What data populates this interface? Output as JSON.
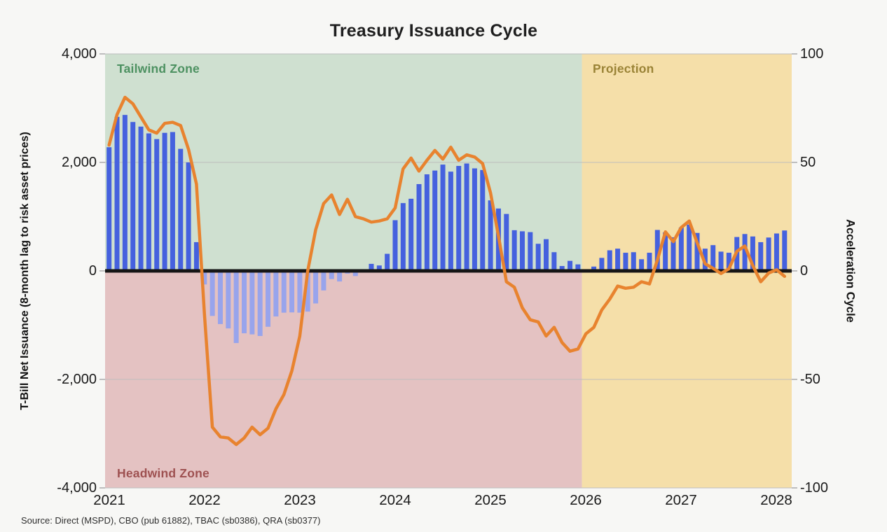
{
  "title": "Treasury Issuance Cycle",
  "source_note": "Source: Direct (MSPD), CBO (pub 61882), TBAC (sb0386), QRA (sb0377)",
  "left_axis": {
    "label": "T-Bill Net Issuance (8-month lag to risk asset prices)",
    "ticks": [
      "4,000",
      "2,000",
      "0",
      "-2,000",
      "-4,000"
    ],
    "min": -4000,
    "max": 4000
  },
  "right_axis": {
    "label": "Acceleration Cycle",
    "ticks": [
      "100",
      "50",
      "0",
      "-50",
      "-100"
    ],
    "min": -100,
    "max": 100
  },
  "x_axis": {
    "ticks": [
      "2021",
      "2022",
      "2023",
      "2024",
      "2025",
      "2026",
      "2027",
      "2028"
    ]
  },
  "zones": {
    "tailwind": {
      "label": "Tailwind Zone"
    },
    "headwind": {
      "label": "Headwind Zone"
    },
    "projection": {
      "label": "Projection"
    }
  },
  "colors": {
    "background": "#f7f7f5",
    "bar_positive": "#4561de",
    "bar_negative": "#98a4ec",
    "line": "#e8832f",
    "zero_line": "#161616",
    "grid": "#bdbdbd",
    "tailwind_fill": "#cfe0d0",
    "headwind_fill": "#e4c2c2",
    "projection_fill": "#f5dfa9",
    "tailwind_text": "#4d9161",
    "headwind_text": "#9e5151",
    "projection_text": "#9a8336"
  },
  "chart_data": {
    "type": "bar",
    "subtype": "monthly bars with overlaid line (dual axis)",
    "title": "Treasury Issuance Cycle",
    "start_month": "2021-01",
    "end_month": "2028-02",
    "left_axis_max": 4000,
    "right_axis_max": 100,
    "grid_values_left": [
      4000,
      2000,
      0,
      -2000,
      -4000
    ],
    "projection_start_index": 60,
    "projection_start_label": "2026",
    "bar_series": {
      "name": "T-Bill Net Issuance",
      "axis": "left",
      "values": [
        2280,
        2840,
        2875,
        2745,
        2660,
        2535,
        2430,
        2545,
        2560,
        2250,
        2000,
        530,
        -250,
        -830,
        -980,
        -1060,
        -1330,
        -1150,
        -1170,
        -1200,
        -1030,
        -840,
        -770,
        -765,
        -770,
        -750,
        -600,
        -360,
        -150,
        -195,
        -50,
        -95,
        0,
        130,
        100,
        315,
        935,
        1250,
        1330,
        1600,
        1780,
        1850,
        1960,
        1830,
        1935,
        1980,
        1890,
        1860,
        1300,
        1150,
        1050,
        750,
        730,
        715,
        500,
        585,
        345,
        90,
        185,
        120,
        30,
        80,
        240,
        380,
        410,
        335,
        345,
        215,
        335,
        755,
        710,
        620,
        800,
        855,
        700,
        410,
        475,
        355,
        335,
        625,
        680,
        635,
        530,
        615,
        690,
        745
      ]
    },
    "line_series": {
      "name": "Acceleration Cycle",
      "axis": "right",
      "values": [
        58,
        72,
        80,
        77,
        71,
        65,
        63.5,
        68,
        68.5,
        67,
        56,
        40,
        -20,
        -72,
        -76.5,
        -77,
        -80,
        -77,
        -72,
        -75.5,
        -72.5,
        -63.5,
        -57,
        -46,
        -30,
        0,
        19,
        31,
        35,
        26,
        33,
        25,
        24,
        22.5,
        23,
        24,
        29,
        47,
        52,
        46,
        51,
        55.5,
        51.5,
        57,
        51,
        53.5,
        52.5,
        49.5,
        36,
        16,
        -5,
        -7.5,
        -17,
        -22.5,
        -23.5,
        -30,
        -26,
        -33,
        -37,
        -36,
        -29,
        -26,
        -18,
        -13,
        -7,
        -8,
        -7.5,
        -5,
        -6,
        5,
        18,
        13.5,
        20,
        23,
        13,
        3.3,
        1.2,
        -1.2,
        1,
        9,
        11.5,
        2.5,
        -5,
        -1,
        0.5,
        -2.5
      ]
    }
  }
}
